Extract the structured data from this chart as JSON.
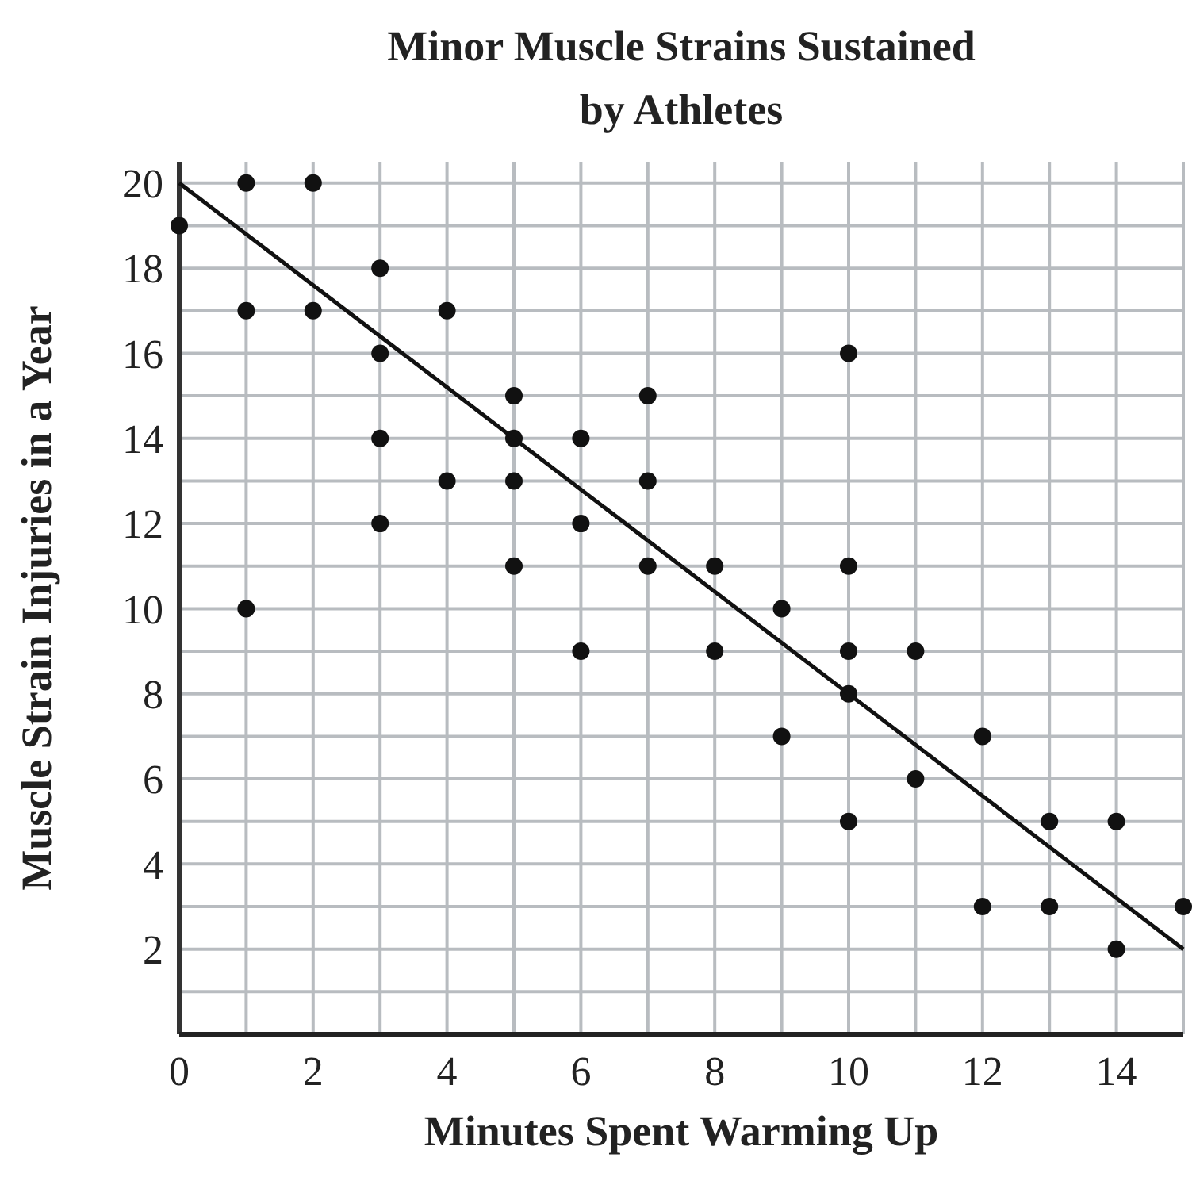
{
  "chart_data": {
    "type": "scatter",
    "title": "Minor Muscle Strains Sustained\nby Athletes",
    "xlabel": "Minutes Spent Warming Up",
    "ylabel": "Muscle Strain Injuries in a Year",
    "xlim": [
      0,
      15
    ],
    "ylim": [
      0,
      20.5
    ],
    "xticks": [
      0,
      {
        "value": 1,
        "label": null
      },
      2,
      {
        "value": 3,
        "label": null
      },
      4,
      {
        "value": 5,
        "label": null
      },
      6,
      {
        "value": 7,
        "label": null
      },
      8,
      {
        "value": 9,
        "label": null
      },
      10,
      {
        "value": 11,
        "label": null
      },
      12,
      {
        "value": 13,
        "label": null
      },
      14,
      {
        "value": 15,
        "label": null
      }
    ],
    "yticks": [
      {
        "value": 0,
        "label": null
      },
      {
        "value": 1,
        "label": null
      },
      2,
      {
        "value": 3,
        "label": null
      },
      4,
      {
        "value": 5,
        "label": null
      },
      6,
      {
        "value": 7,
        "label": null
      },
      8,
      {
        "value": 9,
        "label": null
      },
      10,
      {
        "value": 11,
        "label": null
      },
      12,
      {
        "value": 13,
        "label": null
      },
      14,
      {
        "value": 15,
        "label": null
      },
      16,
      {
        "value": 17,
        "label": null
      },
      18,
      {
        "value": 19,
        "label": null
      },
      20
    ],
    "grid": true,
    "marker": "circle",
    "series": [
      {
        "color": "#111111",
        "x": [
          0,
          1,
          1,
          1,
          2,
          2,
          3,
          3,
          3,
          3,
          4,
          4,
          5,
          5,
          5,
          5,
          6,
          6,
          6,
          7,
          7,
          7,
          8,
          8,
          9,
          9,
          10,
          10,
          10,
          10,
          10,
          11,
          11,
          12,
          12,
          13,
          13,
          14,
          14,
          15
        ],
        "values": [
          19,
          20,
          17,
          10,
          20,
          17,
          18,
          16,
          14,
          12,
          17,
          13,
          15,
          14,
          13,
          11,
          14,
          12,
          9,
          15,
          13,
          11,
          11,
          9,
          10,
          7,
          16,
          11,
          9,
          8,
          5,
          9,
          6,
          7,
          3,
          5,
          3,
          5,
          2,
          3
        ]
      },
      {
        "type": "line",
        "color": "#111111",
        "marker": "none",
        "x": [
          0,
          15
        ],
        "values": [
          20,
          2
        ]
      }
    ]
  }
}
